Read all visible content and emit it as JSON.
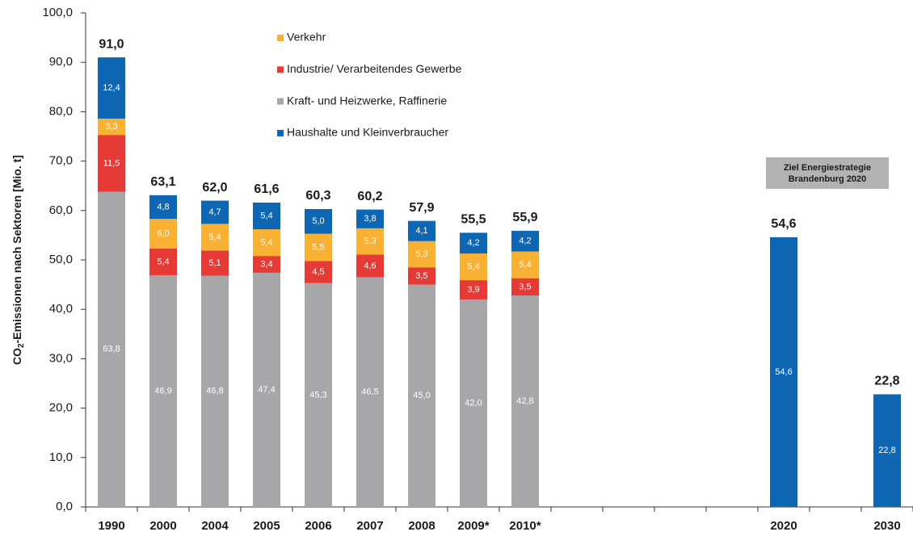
{
  "chart_data": {
    "type": "stacked_bar",
    "y_label": [
      "CO",
      "2",
      "-Emissionen nach Sektoren [Mio. t]"
    ],
    "categories": [
      "1990",
      "2000",
      "2004",
      "2005",
      "2006",
      "2007",
      "2008",
      "2009*",
      "2010*",
      null,
      null,
      null,
      null,
      "2020",
      null,
      "2030"
    ],
    "series": [
      {
        "name": "Kraft- und Heizwerke, Raffinerie",
        "color": "#a7a7a9",
        "values": [
          63.8,
          46.9,
          46.8,
          47.4,
          45.3,
          46.5,
          45.0,
          42.0,
          42.8,
          null,
          null,
          null,
          null,
          null,
          null,
          null
        ],
        "value_labels": [
          "63,8",
          "46,9",
          "46,8",
          "47,4",
          "45,3",
          "46,5",
          "45,0",
          "42,0",
          "42,8",
          null,
          null,
          null,
          null,
          null,
          null,
          null
        ]
      },
      {
        "name": "Industrie/ Verarbeitendes Gewerbe",
        "color": "#e53a35",
        "values": [
          11.5,
          5.4,
          5.1,
          3.4,
          4.5,
          4.6,
          3.5,
          3.9,
          3.5,
          null,
          null,
          null,
          null,
          null,
          null,
          null
        ],
        "value_labels": [
          "11,5",
          "5,4",
          "5,1",
          "3,4",
          "4,5",
          "4,6",
          "3,5",
          "3,9",
          "3,5",
          null,
          null,
          null,
          null,
          null,
          null,
          null
        ]
      },
      {
        "name": "Verkehr",
        "color": "#f8b133",
        "values": [
          3.3,
          6.0,
          5.4,
          5.4,
          5.5,
          5.3,
          5.3,
          5.4,
          5.4,
          null,
          null,
          null,
          null,
          null,
          null,
          null
        ],
        "value_labels": [
          "3,3",
          "6,0",
          "5,4",
          "5,4",
          "5,5",
          "5,3",
          "5,3",
          "5,4",
          "5,4",
          null,
          null,
          null,
          null,
          null,
          null,
          null
        ]
      },
      {
        "name": "Haushalte und Kleinverbraucher",
        "color": "#0f66b2",
        "values": [
          12.4,
          4.8,
          4.7,
          5.4,
          5.0,
          3.8,
          4.1,
          4.2,
          4.2,
          null,
          null,
          null,
          null,
          54.6,
          null,
          22.8
        ],
        "value_labels": [
          "12,4",
          "4,8",
          "4,7",
          "5,4",
          "5,0",
          "3,8",
          "4,1",
          "4,2",
          "4,2",
          null,
          null,
          null,
          null,
          "54,6",
          null,
          "22,8"
        ]
      }
    ],
    "totals": [
      91.0,
      63.1,
      62.0,
      61.6,
      60.3,
      60.2,
      57.9,
      55.5,
      55.9,
      null,
      null,
      null,
      null,
      54.6,
      null,
      22.8
    ],
    "total_labels": [
      "91,0",
      "63,1",
      "62,0",
      "61,6",
      "60,3",
      "60,2",
      "57,9",
      "55,5",
      "55,9",
      null,
      null,
      null,
      null,
      "54,6",
      null,
      "22,8"
    ],
    "annotation": [
      "Ziel Energiestrategie",
      "Brandenburg 2020"
    ],
    "ylim": [
      0,
      100
    ],
    "yticks": [
      {
        "value": 0,
        "label": "0,0"
      },
      {
        "value": 10,
        "label": "10,0"
      },
      {
        "value": 20,
        "label": "20,0"
      },
      {
        "value": 30,
        "label": "30,0"
      },
      {
        "value": 40,
        "label": "40,0"
      },
      {
        "value": 50,
        "label": "50,0"
      },
      {
        "value": 60,
        "label": "60,0"
      },
      {
        "value": 70,
        "label": "70,0"
      },
      {
        "value": 80,
        "label": "80,0"
      },
      {
        "value": 90,
        "label": "90,0"
      },
      {
        "value": 100,
        "label": "100,0"
      }
    ]
  }
}
